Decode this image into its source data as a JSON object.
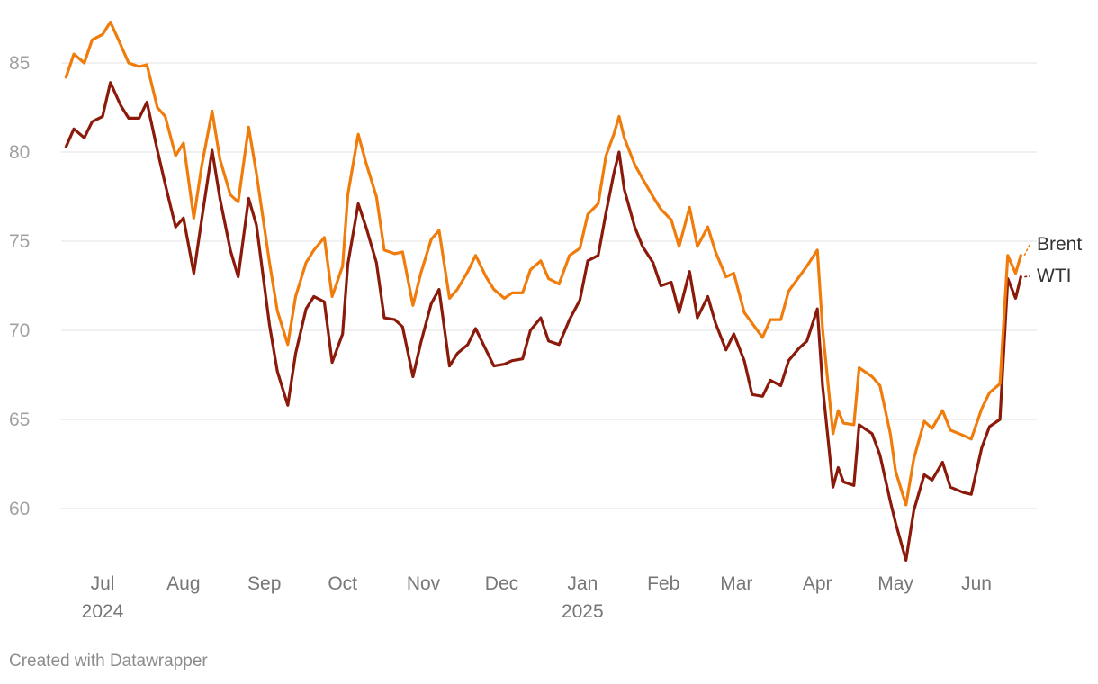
{
  "chart_data": {
    "type": "line",
    "title": "",
    "xlabel": "",
    "ylabel": "",
    "x_range": [
      "2024-06-17",
      "2025-06-20"
    ],
    "ylim": [
      57,
      87.5
    ],
    "y_ticks": [
      60,
      65,
      70,
      75,
      80,
      85
    ],
    "grid": true,
    "legend": "end-labels",
    "x_ticks": [
      {
        "date": "2024-07-01",
        "label": "Jul",
        "year": "2024"
      },
      {
        "date": "2024-08-01",
        "label": "Aug",
        "year": ""
      },
      {
        "date": "2024-09-01",
        "label": "Sep",
        "year": ""
      },
      {
        "date": "2024-10-01",
        "label": "Oct",
        "year": ""
      },
      {
        "date": "2024-11-01",
        "label": "Nov",
        "year": ""
      },
      {
        "date": "2024-12-01",
        "label": "Dec",
        "year": ""
      },
      {
        "date": "2025-01-01",
        "label": "Jan",
        "year": "2025"
      },
      {
        "date": "2025-02-01",
        "label": "Feb",
        "year": ""
      },
      {
        "date": "2025-03-01",
        "label": "Mar",
        "year": ""
      },
      {
        "date": "2025-04-01",
        "label": "Apr",
        "year": ""
      },
      {
        "date": "2025-05-01",
        "label": "May",
        "year": ""
      },
      {
        "date": "2025-06-01",
        "label": "Jun",
        "year": ""
      }
    ],
    "series": [
      {
        "name": "Brent",
        "color": "#f07c0c",
        "points": [
          [
            "2024-06-17",
            84.2
          ],
          [
            "2024-06-20",
            85.5
          ],
          [
            "2024-06-24",
            85.0
          ],
          [
            "2024-06-27",
            86.3
          ],
          [
            "2024-07-01",
            86.6
          ],
          [
            "2024-07-04",
            87.3
          ],
          [
            "2024-07-08",
            86.0
          ],
          [
            "2024-07-11",
            85.0
          ],
          [
            "2024-07-15",
            84.8
          ],
          [
            "2024-07-18",
            84.9
          ],
          [
            "2024-07-22",
            82.5
          ],
          [
            "2024-07-25",
            82.0
          ],
          [
            "2024-07-29",
            79.8
          ],
          [
            "2024-08-01",
            80.5
          ],
          [
            "2024-08-05",
            76.3
          ],
          [
            "2024-08-08",
            79.2
          ],
          [
            "2024-08-12",
            82.3
          ],
          [
            "2024-08-15",
            79.6
          ],
          [
            "2024-08-19",
            77.6
          ],
          [
            "2024-08-22",
            77.2
          ],
          [
            "2024-08-26",
            81.4
          ],
          [
            "2024-08-29",
            78.8
          ],
          [
            "2024-09-03",
            73.8
          ],
          [
            "2024-09-06",
            71.1
          ],
          [
            "2024-09-10",
            69.2
          ],
          [
            "2024-09-13",
            71.9
          ],
          [
            "2024-09-17",
            73.8
          ],
          [
            "2024-09-20",
            74.5
          ],
          [
            "2024-09-24",
            75.2
          ],
          [
            "2024-09-27",
            71.9
          ],
          [
            "2024-10-01",
            73.6
          ],
          [
            "2024-10-03",
            77.6
          ],
          [
            "2024-10-07",
            81.0
          ],
          [
            "2024-10-10",
            79.4
          ],
          [
            "2024-10-14",
            77.5
          ],
          [
            "2024-10-17",
            74.5
          ],
          [
            "2024-10-21",
            74.3
          ],
          [
            "2024-10-24",
            74.4
          ],
          [
            "2024-10-28",
            71.4
          ],
          [
            "2024-10-31",
            73.2
          ],
          [
            "2024-11-04",
            75.1
          ],
          [
            "2024-11-07",
            75.6
          ],
          [
            "2024-11-11",
            71.8
          ],
          [
            "2024-11-14",
            72.3
          ],
          [
            "2024-11-18",
            73.3
          ],
          [
            "2024-11-21",
            74.2
          ],
          [
            "2024-11-25",
            73.0
          ],
          [
            "2024-11-28",
            72.3
          ],
          [
            "2024-12-02",
            71.8
          ],
          [
            "2024-12-05",
            72.1
          ],
          [
            "2024-12-09",
            72.1
          ],
          [
            "2024-12-12",
            73.4
          ],
          [
            "2024-12-16",
            73.9
          ],
          [
            "2024-12-19",
            72.9
          ],
          [
            "2024-12-23",
            72.6
          ],
          [
            "2024-12-27",
            74.2
          ],
          [
            "2024-12-31",
            74.6
          ],
          [
            "2025-01-03",
            76.5
          ],
          [
            "2025-01-07",
            77.1
          ],
          [
            "2025-01-10",
            79.8
          ],
          [
            "2025-01-13",
            81.0
          ],
          [
            "2025-01-15",
            82.0
          ],
          [
            "2025-01-17",
            80.8
          ],
          [
            "2025-01-21",
            79.3
          ],
          [
            "2025-01-24",
            78.5
          ],
          [
            "2025-01-28",
            77.5
          ],
          [
            "2025-01-31",
            76.8
          ],
          [
            "2025-02-04",
            76.2
          ],
          [
            "2025-02-07",
            74.7
          ],
          [
            "2025-02-11",
            76.9
          ],
          [
            "2025-02-14",
            74.7
          ],
          [
            "2025-02-18",
            75.8
          ],
          [
            "2025-02-21",
            74.4
          ],
          [
            "2025-02-25",
            73.0
          ],
          [
            "2025-02-28",
            73.2
          ],
          [
            "2025-03-04",
            71.0
          ],
          [
            "2025-03-07",
            70.4
          ],
          [
            "2025-03-11",
            69.6
          ],
          [
            "2025-03-14",
            70.6
          ],
          [
            "2025-03-18",
            70.6
          ],
          [
            "2025-03-21",
            72.2
          ],
          [
            "2025-03-25",
            73.0
          ],
          [
            "2025-03-28",
            73.6
          ],
          [
            "2025-04-01",
            74.5
          ],
          [
            "2025-04-03",
            70.1
          ],
          [
            "2025-04-07",
            64.2
          ],
          [
            "2025-04-09",
            65.5
          ],
          [
            "2025-04-11",
            64.8
          ],
          [
            "2025-04-15",
            64.7
          ],
          [
            "2025-04-17",
            67.9
          ],
          [
            "2025-04-22",
            67.4
          ],
          [
            "2025-04-25",
            66.9
          ],
          [
            "2025-04-29",
            64.2
          ],
          [
            "2025-05-01",
            62.1
          ],
          [
            "2025-05-05",
            60.2
          ],
          [
            "2025-05-08",
            62.8
          ],
          [
            "2025-05-12",
            64.9
          ],
          [
            "2025-05-15",
            64.5
          ],
          [
            "2025-05-19",
            65.5
          ],
          [
            "2025-05-22",
            64.4
          ],
          [
            "2025-05-27",
            64.1
          ],
          [
            "2025-05-30",
            63.9
          ],
          [
            "2025-06-03",
            65.6
          ],
          [
            "2025-06-06",
            66.5
          ],
          [
            "2025-06-10",
            67.0
          ],
          [
            "2025-06-13",
            74.2
          ],
          [
            "2025-06-16",
            73.2
          ],
          [
            "2025-06-18",
            74.2
          ]
        ]
      },
      {
        "name": "WTI",
        "color": "#8b1a0a",
        "points": [
          [
            "2024-06-17",
            80.3
          ],
          [
            "2024-06-20",
            81.3
          ],
          [
            "2024-06-24",
            80.8
          ],
          [
            "2024-06-27",
            81.7
          ],
          [
            "2024-07-01",
            82.0
          ],
          [
            "2024-07-04",
            83.9
          ],
          [
            "2024-07-08",
            82.6
          ],
          [
            "2024-07-11",
            81.9
          ],
          [
            "2024-07-15",
            81.9
          ],
          [
            "2024-07-18",
            82.8
          ],
          [
            "2024-07-22",
            80.1
          ],
          [
            "2024-07-25",
            78.2
          ],
          [
            "2024-07-29",
            75.8
          ],
          [
            "2024-08-01",
            76.3
          ],
          [
            "2024-08-05",
            73.2
          ],
          [
            "2024-08-08",
            76.2
          ],
          [
            "2024-08-12",
            80.1
          ],
          [
            "2024-08-15",
            77.4
          ],
          [
            "2024-08-19",
            74.5
          ],
          [
            "2024-08-22",
            73.0
          ],
          [
            "2024-08-26",
            77.4
          ],
          [
            "2024-08-29",
            75.9
          ],
          [
            "2024-09-03",
            70.3
          ],
          [
            "2024-09-06",
            67.7
          ],
          [
            "2024-09-10",
            65.8
          ],
          [
            "2024-09-13",
            68.7
          ],
          [
            "2024-09-17",
            71.2
          ],
          [
            "2024-09-20",
            71.9
          ],
          [
            "2024-09-24",
            71.6
          ],
          [
            "2024-09-27",
            68.2
          ],
          [
            "2024-10-01",
            69.8
          ],
          [
            "2024-10-03",
            73.7
          ],
          [
            "2024-10-07",
            77.1
          ],
          [
            "2024-10-10",
            75.8
          ],
          [
            "2024-10-14",
            73.8
          ],
          [
            "2024-10-17",
            70.7
          ],
          [
            "2024-10-21",
            70.6
          ],
          [
            "2024-10-24",
            70.2
          ],
          [
            "2024-10-28",
            67.4
          ],
          [
            "2024-10-31",
            69.3
          ],
          [
            "2024-11-04",
            71.5
          ],
          [
            "2024-11-07",
            72.3
          ],
          [
            "2024-11-11",
            68.0
          ],
          [
            "2024-11-14",
            68.7
          ],
          [
            "2024-11-18",
            69.2
          ],
          [
            "2024-11-21",
            70.1
          ],
          [
            "2024-11-25",
            68.9
          ],
          [
            "2024-11-28",
            68.0
          ],
          [
            "2024-12-02",
            68.1
          ],
          [
            "2024-12-05",
            68.3
          ],
          [
            "2024-12-09",
            68.4
          ],
          [
            "2024-12-12",
            70.0
          ],
          [
            "2024-12-16",
            70.7
          ],
          [
            "2024-12-19",
            69.4
          ],
          [
            "2024-12-23",
            69.2
          ],
          [
            "2024-12-27",
            70.6
          ],
          [
            "2024-12-31",
            71.7
          ],
          [
            "2025-01-03",
            73.9
          ],
          [
            "2025-01-07",
            74.2
          ],
          [
            "2025-01-10",
            76.6
          ],
          [
            "2025-01-13",
            78.8
          ],
          [
            "2025-01-15",
            80.0
          ],
          [
            "2025-01-17",
            77.9
          ],
          [
            "2025-01-21",
            75.8
          ],
          [
            "2025-01-24",
            74.7
          ],
          [
            "2025-01-28",
            73.8
          ],
          [
            "2025-01-31",
            72.5
          ],
          [
            "2025-02-04",
            72.7
          ],
          [
            "2025-02-07",
            71.0
          ],
          [
            "2025-02-11",
            73.3
          ],
          [
            "2025-02-14",
            70.7
          ],
          [
            "2025-02-18",
            71.9
          ],
          [
            "2025-02-21",
            70.4
          ],
          [
            "2025-02-25",
            68.9
          ],
          [
            "2025-02-28",
            69.8
          ],
          [
            "2025-03-04",
            68.3
          ],
          [
            "2025-03-07",
            66.4
          ],
          [
            "2025-03-11",
            66.3
          ],
          [
            "2025-03-14",
            67.2
          ],
          [
            "2025-03-18",
            66.9
          ],
          [
            "2025-03-21",
            68.3
          ],
          [
            "2025-03-25",
            69.0
          ],
          [
            "2025-03-28",
            69.4
          ],
          [
            "2025-04-01",
            71.2
          ],
          [
            "2025-04-03",
            66.9
          ],
          [
            "2025-04-07",
            61.2
          ],
          [
            "2025-04-09",
            62.3
          ],
          [
            "2025-04-11",
            61.5
          ],
          [
            "2025-04-15",
            61.3
          ],
          [
            "2025-04-17",
            64.7
          ],
          [
            "2025-04-22",
            64.2
          ],
          [
            "2025-04-25",
            63.0
          ],
          [
            "2025-04-29",
            60.4
          ],
          [
            "2025-05-01",
            59.2
          ],
          [
            "2025-05-05",
            57.1
          ],
          [
            "2025-05-08",
            59.9
          ],
          [
            "2025-05-12",
            61.9
          ],
          [
            "2025-05-15",
            61.6
          ],
          [
            "2025-05-19",
            62.6
          ],
          [
            "2025-05-22",
            61.2
          ],
          [
            "2025-05-27",
            60.9
          ],
          [
            "2025-05-30",
            60.8
          ],
          [
            "2025-06-03",
            63.4
          ],
          [
            "2025-06-06",
            64.6
          ],
          [
            "2025-06-10",
            65.0
          ],
          [
            "2025-06-13",
            72.9
          ],
          [
            "2025-06-16",
            71.8
          ],
          [
            "2025-06-18",
            73.0
          ]
        ]
      }
    ]
  },
  "footer": {
    "credit": "Created with Datawrapper"
  }
}
